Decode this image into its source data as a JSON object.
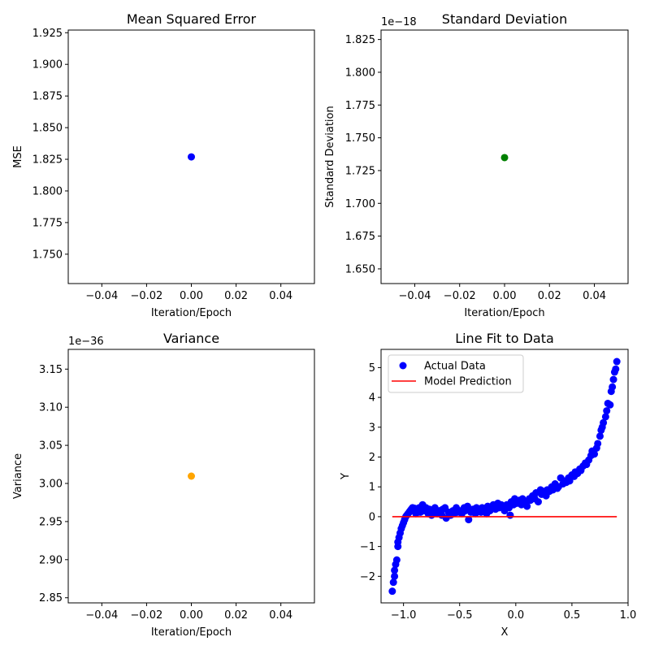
{
  "chart_data": [
    {
      "type": "scatter",
      "title": "Mean Squared Error",
      "xlabel": "Iteration/Epoch",
      "ylabel": "MSE",
      "xlim": [
        -0.055,
        0.055
      ],
      "ylim": [
        1.7268,
        1.9271
      ],
      "x_ticks": [
        -0.04,
        -0.02,
        0.0,
        0.02,
        0.04
      ],
      "x_tick_labels": [
        "−0.04",
        "−0.02",
        "0.00",
        "0.02",
        "0.04"
      ],
      "y_ticks": [
        1.75,
        1.775,
        1.8,
        1.825,
        1.85,
        1.875,
        1.9,
        1.925
      ],
      "y_tick_labels": [
        "1.750",
        "1.775",
        "1.800",
        "1.825",
        "1.850",
        "1.875",
        "1.900",
        "1.925"
      ],
      "offset_text": "",
      "points": [
        {
          "x": 0.0,
          "y": 1.8269
        }
      ],
      "colors": {
        "points": "#0000ff"
      }
    },
    {
      "type": "scatter",
      "title": "Standard Deviation",
      "xlabel": "Iteration/Epoch",
      "ylabel": "Standard Deviation",
      "xlim": [
        -0.055,
        0.055
      ],
      "ylim": [
        1.6388,
        1.8322
      ],
      "x_ticks": [
        -0.04,
        -0.02,
        0.0,
        0.02,
        0.04
      ],
      "x_tick_labels": [
        "−0.04",
        "−0.02",
        "0.00",
        "0.02",
        "0.04"
      ],
      "y_ticks": [
        1.65,
        1.675,
        1.7,
        1.725,
        1.75,
        1.775,
        1.8,
        1.825
      ],
      "y_tick_labels": [
        "1.650",
        "1.675",
        "1.700",
        "1.725",
        "1.750",
        "1.775",
        "1.800",
        "1.825"
      ],
      "offset_text": "1e−18",
      "points": [
        {
          "x": 0.0,
          "y": 1.7349
        }
      ],
      "colors": {
        "points": "#008000"
      }
    },
    {
      "type": "scatter",
      "title": "Variance",
      "xlabel": "Iteration/Epoch",
      "ylabel": "Variance",
      "xlim": [
        -0.055,
        0.055
      ],
      "ylim": [
        2.8433,
        3.1759
      ],
      "x_ticks": [
        -0.04,
        -0.02,
        0.0,
        0.02,
        0.04
      ],
      "x_tick_labels": [
        "−0.04",
        "−0.02",
        "0.00",
        "0.02",
        "0.04"
      ],
      "y_ticks": [
        2.85,
        2.9,
        2.95,
        3.0,
        3.05,
        3.1,
        3.15
      ],
      "y_tick_labels": [
        "2.85",
        "2.90",
        "2.95",
        "3.00",
        "3.05",
        "3.10",
        "3.15"
      ],
      "offset_text": "1e−36",
      "points": [
        {
          "x": 0.0,
          "y": 3.0096
        }
      ],
      "colors": {
        "points": "#ffa500"
      }
    },
    {
      "type": "scatter",
      "title": "Line Fit to Data",
      "xlabel": "X",
      "ylabel": "Y",
      "xlim": [
        -1.2,
        1.0
      ],
      "ylim": [
        -2.89,
        5.61
      ],
      "x_ticks": [
        -1.0,
        -0.5,
        0.0,
        0.5,
        1.0
      ],
      "x_tick_labels": [
        "−1.0",
        "−0.5",
        "0.0",
        "0.5",
        "1.0"
      ],
      "y_ticks": [
        -2,
        -1,
        0,
        1,
        2,
        3,
        4,
        5
      ],
      "y_tick_labels": [
        "−2",
        "−1",
        "0",
        "1",
        "2",
        "3",
        "4",
        "5"
      ],
      "offset_text": "",
      "legend": {
        "placement": "top-left",
        "entries": [
          "Actual Data",
          "Model Prediction"
        ]
      },
      "series": [
        {
          "name": "Actual Data",
          "kind": "points",
          "color": "#0000ff",
          "points": [
            {
              "x": -1.1,
              "y": -2.5
            },
            {
              "x": -1.09,
              "y": -2.2
            },
            {
              "x": -1.08,
              "y": -2.0
            },
            {
              "x": -1.08,
              "y": -1.8
            },
            {
              "x": -1.07,
              "y": -1.6
            },
            {
              "x": -1.06,
              "y": -1.45
            },
            {
              "x": -1.05,
              "y": -1.0
            },
            {
              "x": -1.05,
              "y": -0.85
            },
            {
              "x": -1.04,
              "y": -0.7
            },
            {
              "x": -1.03,
              "y": -0.55
            },
            {
              "x": -1.02,
              "y": -0.4
            },
            {
              "x": -1.01,
              "y": -0.3
            },
            {
              "x": -1.0,
              "y": -0.2
            },
            {
              "x": -0.99,
              "y": -0.1
            },
            {
              "x": -0.98,
              "y": 0.0
            },
            {
              "x": -0.97,
              "y": 0.05
            },
            {
              "x": -0.96,
              "y": 0.1
            },
            {
              "x": -0.95,
              "y": 0.15
            },
            {
              "x": -0.94,
              "y": 0.2
            },
            {
              "x": -0.93,
              "y": 0.25
            },
            {
              "x": -0.92,
              "y": 0.3
            },
            {
              "x": -0.91,
              "y": 0.2
            },
            {
              "x": -0.9,
              "y": 0.28
            },
            {
              "x": -0.89,
              "y": 0.1
            },
            {
              "x": -0.88,
              "y": 0.22
            },
            {
              "x": -0.86,
              "y": 0.3
            },
            {
              "x": -0.85,
              "y": 0.15
            },
            {
              "x": -0.84,
              "y": 0.25
            },
            {
              "x": -0.83,
              "y": 0.4
            },
            {
              "x": -0.82,
              "y": 0.2
            },
            {
              "x": -0.8,
              "y": 0.3
            },
            {
              "x": -0.78,
              "y": 0.1
            },
            {
              "x": -0.77,
              "y": 0.25
            },
            {
              "x": -0.75,
              "y": 0.05
            },
            {
              "x": -0.74,
              "y": 0.15
            },
            {
              "x": -0.72,
              "y": 0.3
            },
            {
              "x": -0.7,
              "y": 0.1
            },
            {
              "x": -0.68,
              "y": 0.2
            },
            {
              "x": -0.66,
              "y": 0.05
            },
            {
              "x": -0.65,
              "y": 0.25
            },
            {
              "x": -0.63,
              "y": 0.3
            },
            {
              "x": -0.62,
              "y": -0.05
            },
            {
              "x": -0.6,
              "y": 0.15
            },
            {
              "x": -0.58,
              "y": 0.05
            },
            {
              "x": -0.56,
              "y": 0.2
            },
            {
              "x": -0.55,
              "y": 0.1
            },
            {
              "x": -0.53,
              "y": 0.3
            },
            {
              "x": -0.52,
              "y": 0.15
            },
            {
              "x": -0.5,
              "y": 0.2
            },
            {
              "x": -0.48,
              "y": 0.1
            },
            {
              "x": -0.46,
              "y": 0.3
            },
            {
              "x": -0.45,
              "y": 0.2
            },
            {
              "x": -0.43,
              "y": 0.35
            },
            {
              "x": -0.42,
              "y": -0.1
            },
            {
              "x": -0.4,
              "y": 0.15
            },
            {
              "x": -0.38,
              "y": 0.25
            },
            {
              "x": -0.36,
              "y": 0.1
            },
            {
              "x": -0.35,
              "y": 0.3
            },
            {
              "x": -0.33,
              "y": 0.2
            },
            {
              "x": -0.31,
              "y": 0.15
            },
            {
              "x": -0.3,
              "y": 0.3
            },
            {
              "x": -0.28,
              "y": 0.25
            },
            {
              "x": -0.26,
              "y": 0.1
            },
            {
              "x": -0.25,
              "y": 0.35
            },
            {
              "x": -0.23,
              "y": 0.2
            },
            {
              "x": -0.21,
              "y": 0.3
            },
            {
              "x": -0.2,
              "y": 0.4
            },
            {
              "x": -0.18,
              "y": 0.25
            },
            {
              "x": -0.16,
              "y": 0.45
            },
            {
              "x": -0.15,
              "y": 0.3
            },
            {
              "x": -0.13,
              "y": 0.4
            },
            {
              "x": -0.11,
              "y": 0.35
            },
            {
              "x": -0.1,
              "y": 0.2
            },
            {
              "x": -0.08,
              "y": 0.4
            },
            {
              "x": -0.06,
              "y": 0.3
            },
            {
              "x": -0.05,
              "y": 0.05
            },
            {
              "x": -0.04,
              "y": 0.5
            },
            {
              "x": -0.02,
              "y": 0.4
            },
            {
              "x": -0.01,
              "y": 0.6
            },
            {
              "x": 0.01,
              "y": 0.45
            },
            {
              "x": 0.03,
              "y": 0.55
            },
            {
              "x": 0.05,
              "y": 0.4
            },
            {
              "x": 0.06,
              "y": 0.6
            },
            {
              "x": 0.08,
              "y": 0.5
            },
            {
              "x": 0.1,
              "y": 0.35
            },
            {
              "x": 0.12,
              "y": 0.6
            },
            {
              "x": 0.13,
              "y": 0.55
            },
            {
              "x": 0.15,
              "y": 0.7
            },
            {
              "x": 0.17,
              "y": 0.6
            },
            {
              "x": 0.18,
              "y": 0.8
            },
            {
              "x": 0.2,
              "y": 0.5
            },
            {
              "x": 0.22,
              "y": 0.9
            },
            {
              "x": 0.23,
              "y": 0.75
            },
            {
              "x": 0.25,
              "y": 0.85
            },
            {
              "x": 0.27,
              "y": 0.7
            },
            {
              "x": 0.28,
              "y": 0.9
            },
            {
              "x": 0.3,
              "y": 0.85
            },
            {
              "x": 0.32,
              "y": 1.0
            },
            {
              "x": 0.33,
              "y": 0.9
            },
            {
              "x": 0.35,
              "y": 1.1
            },
            {
              "x": 0.37,
              "y": 0.95
            },
            {
              "x": 0.38,
              "y": 1.0
            },
            {
              "x": 0.4,
              "y": 1.3
            },
            {
              "x": 0.42,
              "y": 1.1
            },
            {
              "x": 0.43,
              "y": 1.2
            },
            {
              "x": 0.45,
              "y": 1.15
            },
            {
              "x": 0.47,
              "y": 1.3
            },
            {
              "x": 0.48,
              "y": 1.2
            },
            {
              "x": 0.5,
              "y": 1.4
            },
            {
              "x": 0.52,
              "y": 1.35
            },
            {
              "x": 0.53,
              "y": 1.5
            },
            {
              "x": 0.55,
              "y": 1.45
            },
            {
              "x": 0.57,
              "y": 1.6
            },
            {
              "x": 0.58,
              "y": 1.55
            },
            {
              "x": 0.6,
              "y": 1.7
            },
            {
              "x": 0.62,
              "y": 1.8
            },
            {
              "x": 0.63,
              "y": 1.75
            },
            {
              "x": 0.65,
              "y": 1.9
            },
            {
              "x": 0.67,
              "y": 2.05
            },
            {
              "x": 0.68,
              "y": 2.2
            },
            {
              "x": 0.7,
              "y": 2.1
            },
            {
              "x": 0.72,
              "y": 2.3
            },
            {
              "x": 0.73,
              "y": 2.45
            },
            {
              "x": 0.75,
              "y": 2.7
            },
            {
              "x": 0.76,
              "y": 2.9
            },
            {
              "x": 0.77,
              "y": 3.0
            },
            {
              "x": 0.78,
              "y": 3.15
            },
            {
              "x": 0.8,
              "y": 3.35
            },
            {
              "x": 0.81,
              "y": 3.55
            },
            {
              "x": 0.82,
              "y": 3.8
            },
            {
              "x": 0.84,
              "y": 3.75
            },
            {
              "x": 0.85,
              "y": 4.2
            },
            {
              "x": 0.86,
              "y": 4.35
            },
            {
              "x": 0.87,
              "y": 4.6
            },
            {
              "x": 0.88,
              "y": 4.85
            },
            {
              "x": 0.89,
              "y": 4.95
            },
            {
              "x": 0.9,
              "y": 5.2
            }
          ]
        },
        {
          "name": "Model Prediction",
          "kind": "line",
          "color": "#ff0000",
          "points": [
            {
              "x": -1.1,
              "y": 0.0
            },
            {
              "x": 0.9,
              "y": 0.0
            }
          ]
        }
      ]
    }
  ]
}
